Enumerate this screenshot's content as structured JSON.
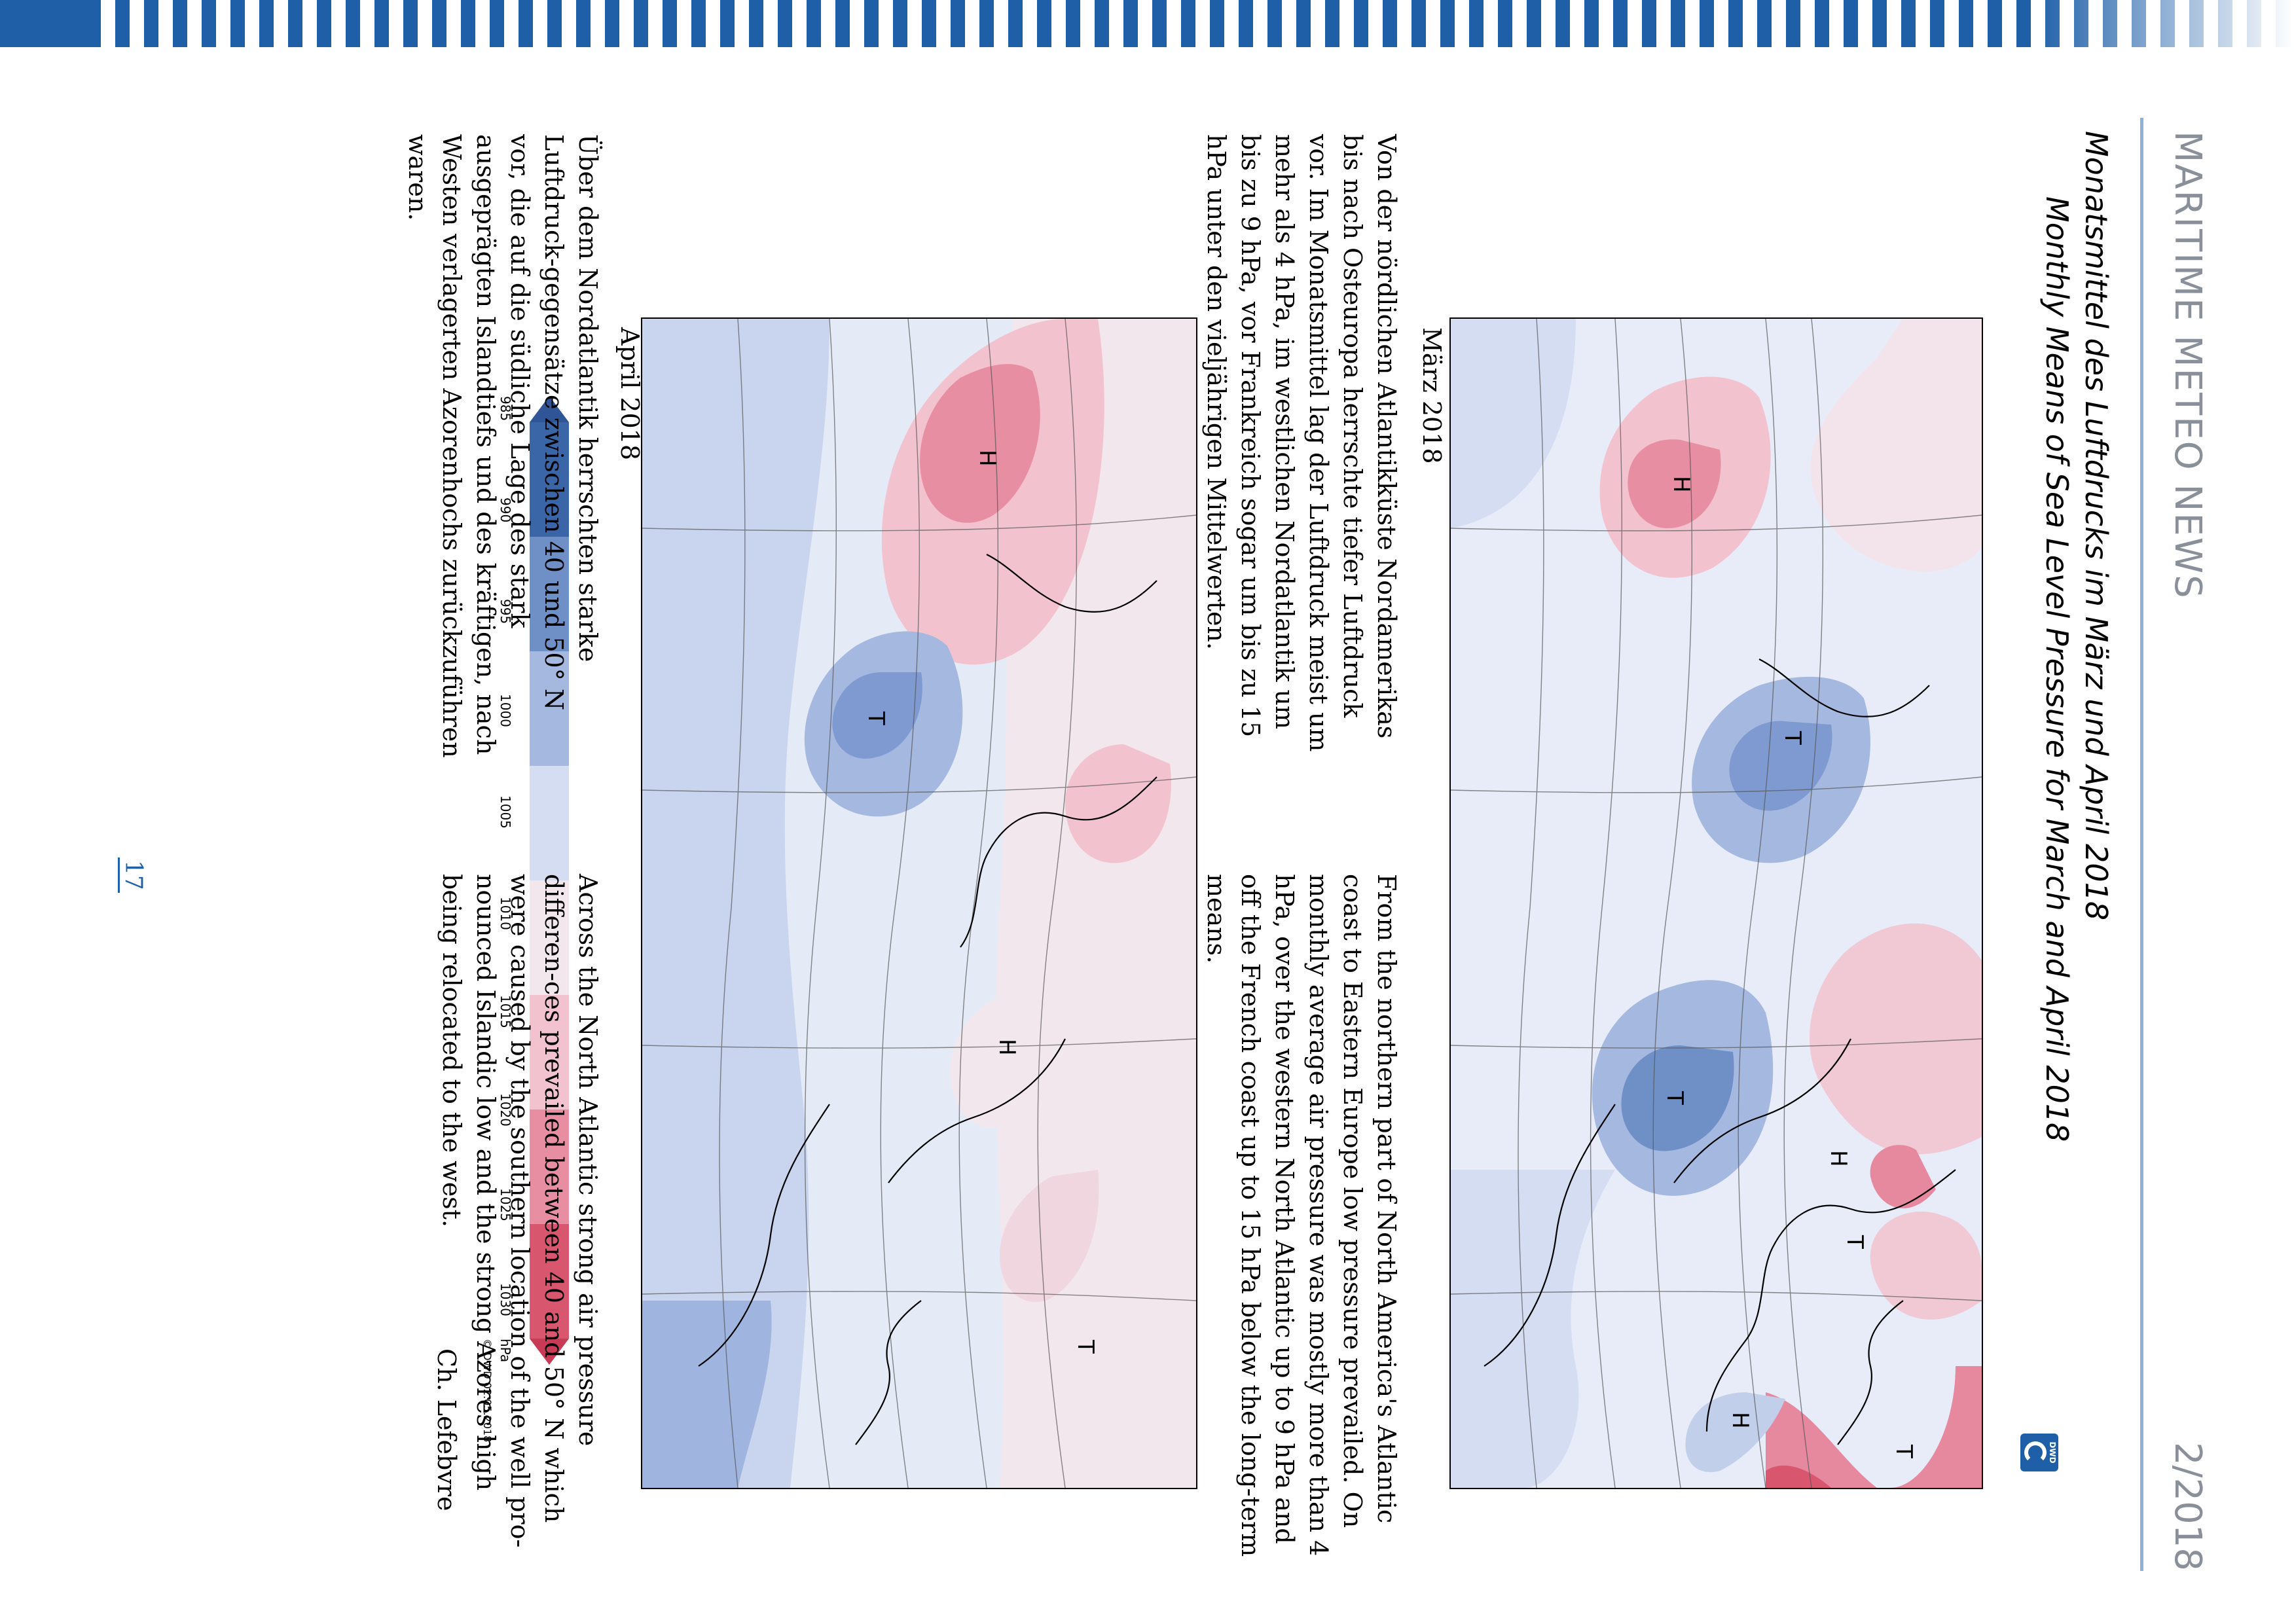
{
  "header": {
    "publication": "MARITIME METEO NEWS",
    "issue": "2/2018"
  },
  "titles": {
    "german": "Monatsmittel des Luftdrucks im März und April 2018",
    "english": "Monthly Means of Sea Level Pressure for March and April 2018"
  },
  "logo": {
    "text": "DWD",
    "icon": "dwd-swirl-icon"
  },
  "maps": [
    {
      "caption": "März 2018",
      "lows": [
        "T",
        "T",
        "T",
        "T"
      ],
      "highs": [
        "H",
        "H",
        "H"
      ]
    },
    {
      "caption": "April 2018",
      "lows": [
        "T",
        "T"
      ],
      "highs": [
        "H",
        "H"
      ]
    }
  ],
  "legend": {
    "ticks": [
      "985",
      "990",
      "995",
      "1000",
      "1005",
      "1010",
      "1015",
      "1020",
      "1025",
      "1030"
    ],
    "unit": "hPa",
    "copyright": "© DWD 02.05.2018",
    "colors": [
      "#3a66a8",
      "#6f8fc7",
      "#a4b8e0",
      "#d4ddf1",
      "#f3e7ee",
      "#f2c3cf",
      "#e88ea2",
      "#d9566f"
    ]
  },
  "text_march": {
    "de": "Von der nördlichen Atlantikküste Nordamerikas bis nach Osteuropa herrschte tiefer Luftdruck vor. Im Monatsmittel lag der Luftdruck meist um mehr als 4 hPa, im westlichen Nordatlantik um bis zu 9 hPa, vor Frankreich sogar um bis zu 15 hPa unter den vieljährigen Mittelwerten.",
    "en": "From the northern part of North America's Atlantic coast to Eastern Europe low pressure prevailed. On monthly average air pressure was mostly more than 4 hPa, over the western North Atlantic up to 9 hPa and off the French coast up to 15 hPa below the long-term means."
  },
  "text_april": {
    "de": "Über dem Nordatlantik herrschten starke Luftdruck-gegensätze zwischen 40 und 50° N vor, die auf die südliche Lage des stark ausgeprägten Islandtiefs und des kräftigen, nach Westen verlagerten Azorenhochs zurückzuführen waren.",
    "en": "Across the North Atlantic strong air pressure differen-ces prevailed between 40 and 50° N which were caused by the southern location of the well pro-nounced Islandic low and the strong Azores high being relocated to the west."
  },
  "author": "Ch. Lefebvre",
  "page_number": "17"
}
